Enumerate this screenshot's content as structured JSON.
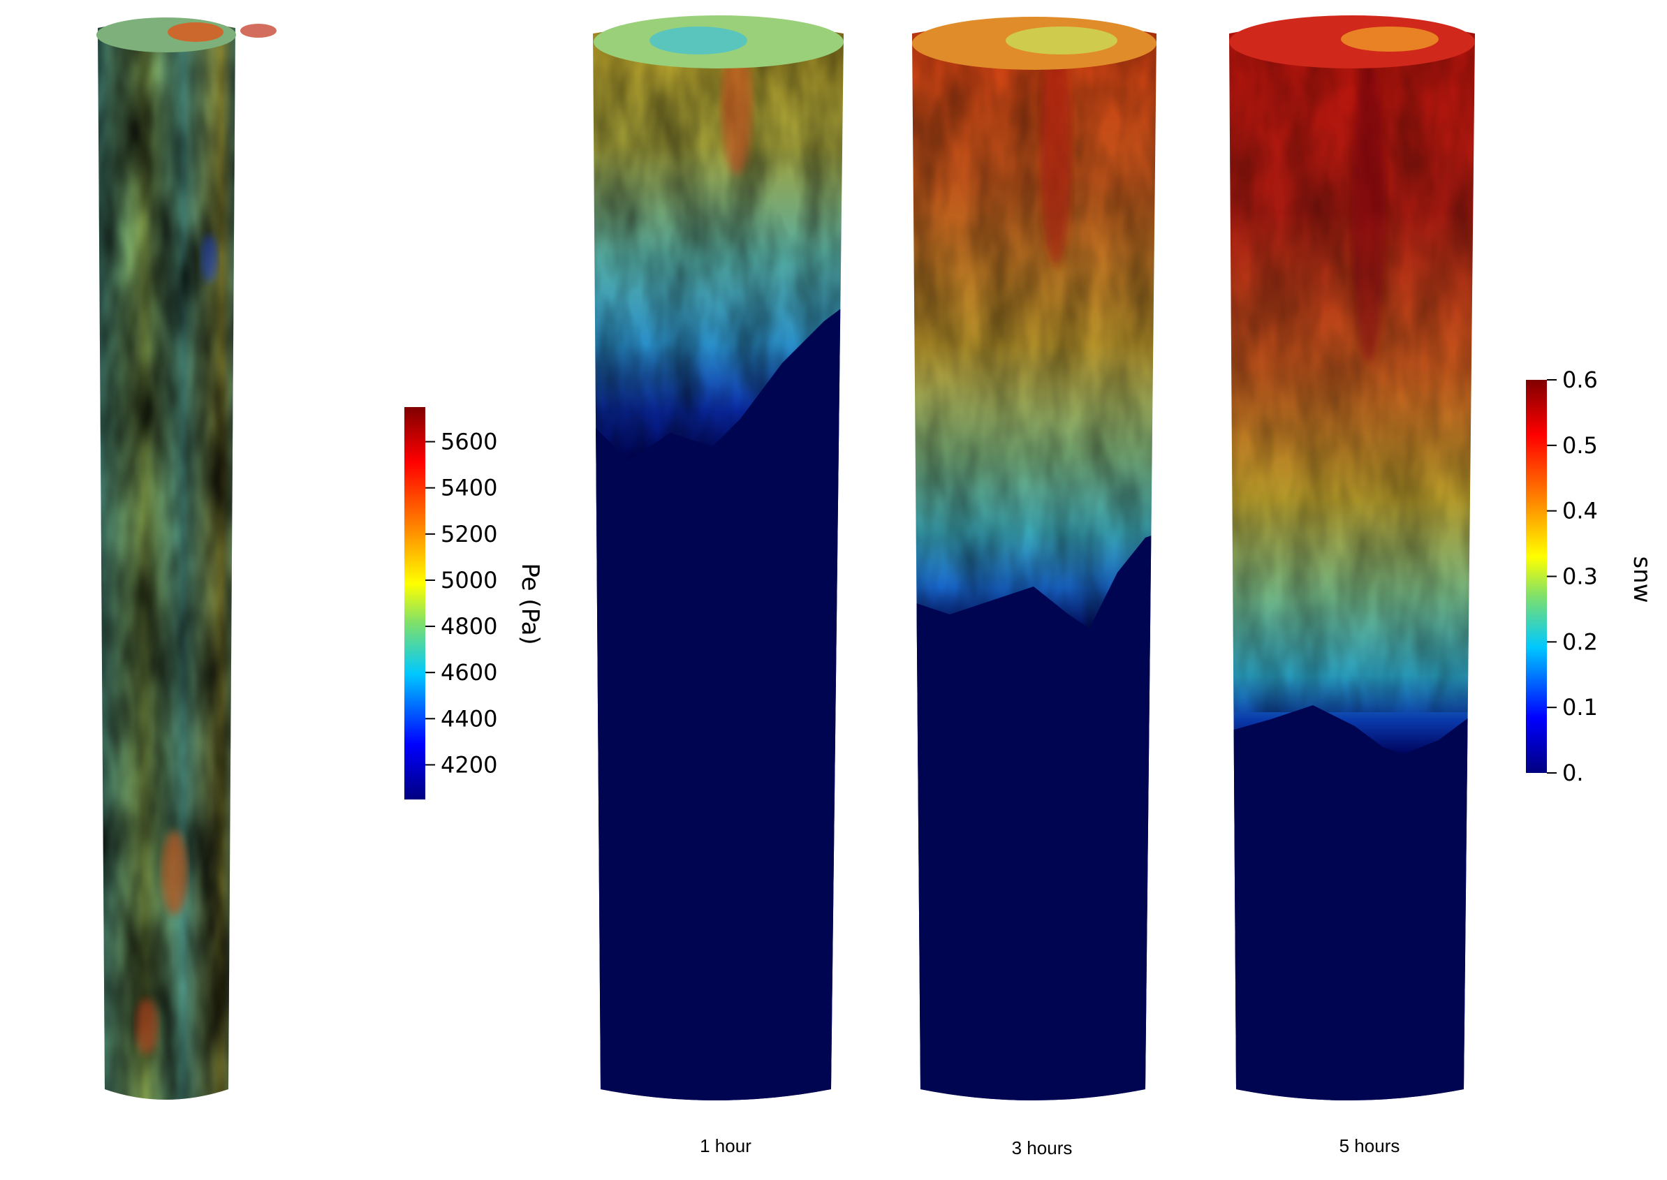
{
  "pe_colorbar": {
    "title": "Pe (Pa)",
    "ticks": [
      "5600",
      "5400",
      "5200",
      "5000",
      "4800",
      "4600",
      "4400",
      "4200"
    ],
    "range": [
      4050,
      5750
    ]
  },
  "snw_colorbar": {
    "title": "snw",
    "ticks": [
      "0.6",
      "0.5",
      "0.4",
      "0.3",
      "0.2",
      "0.1",
      "0."
    ],
    "range": [
      0,
      0.6
    ]
  },
  "colormap": [
    "#000080",
    "#0000ff",
    "#00c8ff",
    "#7fe06a",
    "#ffff00",
    "#ff8000",
    "#ff0000",
    "#800000"
  ],
  "columns": [
    {
      "id": "pe-field",
      "caption": "",
      "front_saturation_top_fraction": null
    },
    {
      "id": "snw-1h",
      "caption": "1 hour",
      "front_saturation_top_fraction": 0.45
    },
    {
      "id": "snw-3h",
      "caption": "3 hours",
      "front_saturation_top_fraction": 0.58
    },
    {
      "id": "snw-5h",
      "caption": "5 hours",
      "front_saturation_top_fraction": 0.7
    }
  ]
}
